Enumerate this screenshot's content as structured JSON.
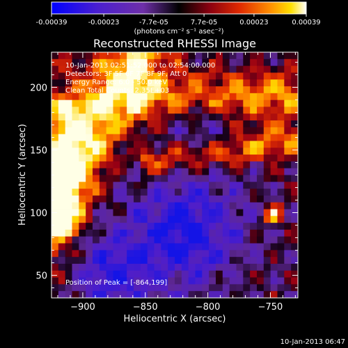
{
  "colorbar": {
    "tick_labels": [
      "-0.00039",
      "-0.00023",
      "-7.7e-05",
      "7.7e-05",
      "0.00023",
      "0.00039"
    ],
    "tick_values": [
      -0.00039,
      -0.00023,
      -7.7e-05,
      7.7e-05,
      0.00023,
      0.00039
    ],
    "range": [
      -0.00039,
      0.00039
    ],
    "unit_label": "(photons cm⁻² s⁻¹ asec⁻²)",
    "colors": [
      "#0000ff",
      "#5a1fc8",
      "#7a3fb0",
      "#000000",
      "#a0001a",
      "#e02800",
      "#ff8c00",
      "#ffd000",
      "#ffffff"
    ]
  },
  "chart_data": {
    "type": "heatmap",
    "title": "Reconstructed RHESSI Image",
    "xlabel": "Heliocentric X (arcsec)",
    "ylabel": "Heliocentric Y (arcsec)",
    "xlim": [
      -925,
      -728
    ],
    "ylim": [
      32,
      228
    ],
    "x_ticks": [
      -900,
      -850,
      -800,
      -750
    ],
    "y_ticks": [
      50,
      100,
      150,
      200
    ],
    "x_tick_labels": [
      "−900",
      "−850",
      "−800",
      "−750"
    ],
    "y_tick_labels": [
      "50",
      "100",
      "150",
      "200"
    ],
    "grid": false,
    "legend": "none",
    "annotations": [
      "10-Jan-2013 02:51:52.000 to 02:54:00.000",
      "Detectors: 3F 5F 6F 7F 8F 9F, Att 0",
      "Energy Range: 6.0 - 50.0 keV",
      "Clean    Total Counts: 2.35E+03"
    ],
    "peak_text": "Position of Peak = [-864,199]",
    "peak": [
      -864,
      199
    ],
    "grid_cols": 36,
    "grid_rows": 36,
    "description": "Bright emission band running from upper-left to center-left and across the top; blue/purple negative region lower right."
  },
  "footer": {
    "timestamp": "10-Jan-2013 06:47"
  }
}
